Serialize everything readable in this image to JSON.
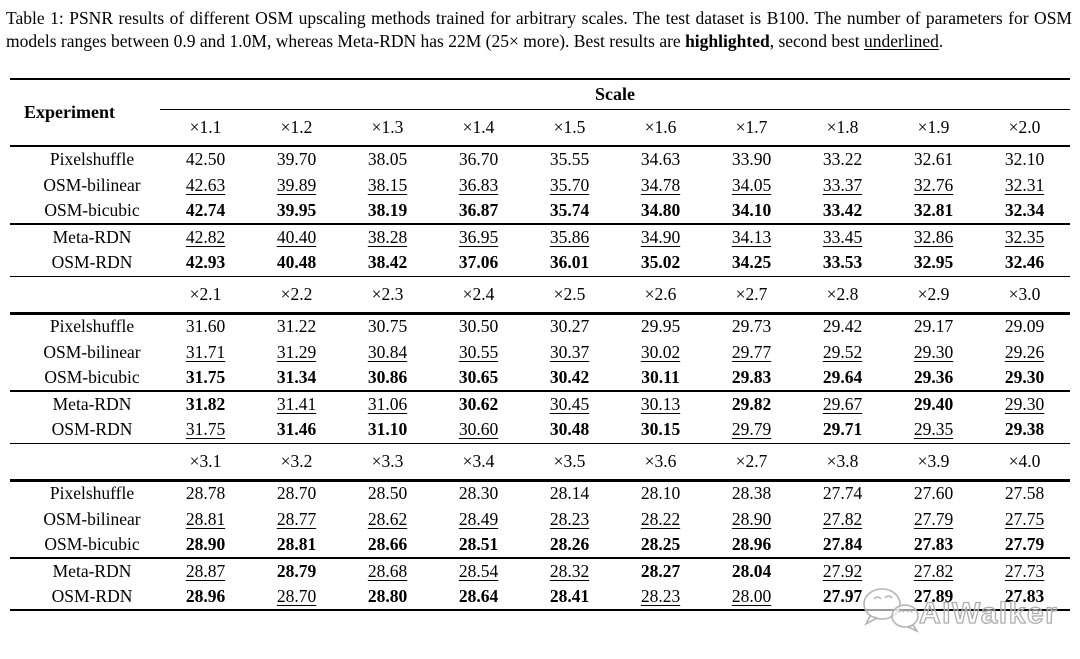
{
  "colors": {
    "background": "#ffffff",
    "text": "#000000",
    "rule": "#000000",
    "watermark_gray": "#b4b4b4"
  },
  "caption": {
    "parts": [
      {
        "text": "Table 1: PSNR results of different OSM upscaling methods trained for arbitrary scales. The test dataset is B100. The number of parameters for OSM models ranges between 0.9 and 1.0M, whereas Meta-RDN has 22M (25× more). Best results are ",
        "style": "normal"
      },
      {
        "text": "highlighted",
        "style": "bold"
      },
      {
        "text": ", second best ",
        "style": "normal"
      },
      {
        "text": "underlined",
        "style": "underline"
      },
      {
        "text": ".",
        "style": "normal"
      }
    ]
  },
  "table": {
    "experiment_header": "Experiment",
    "scale_header": "Scale",
    "blocks": [
      {
        "scales": [
          "×1.1",
          "×1.2",
          "×1.3",
          "×1.4",
          "×1.5",
          "×1.6",
          "×1.7",
          "×1.8",
          "×1.9",
          "×2.0"
        ],
        "groups": [
          {
            "rows": [
              {
                "label": "Pixelshuffle",
                "cells": [
                  {
                    "v": "42.50",
                    "s": "n"
                  },
                  {
                    "v": "39.70",
                    "s": "n"
                  },
                  {
                    "v": "38.05",
                    "s": "n"
                  },
                  {
                    "v": "36.70",
                    "s": "n"
                  },
                  {
                    "v": "35.55",
                    "s": "n"
                  },
                  {
                    "v": "34.63",
                    "s": "n"
                  },
                  {
                    "v": "33.90",
                    "s": "n"
                  },
                  {
                    "v": "33.22",
                    "s": "n"
                  },
                  {
                    "v": "32.61",
                    "s": "n"
                  },
                  {
                    "v": "32.10",
                    "s": "n"
                  }
                ]
              },
              {
                "label": "OSM-bilinear",
                "cells": [
                  {
                    "v": "42.63",
                    "s": "u"
                  },
                  {
                    "v": "39.89",
                    "s": "u"
                  },
                  {
                    "v": "38.15",
                    "s": "u"
                  },
                  {
                    "v": "36.83",
                    "s": "u"
                  },
                  {
                    "v": "35.70",
                    "s": "u"
                  },
                  {
                    "v": "34.78",
                    "s": "u"
                  },
                  {
                    "v": "34.05",
                    "s": "u"
                  },
                  {
                    "v": "33.37",
                    "s": "u"
                  },
                  {
                    "v": "32.76",
                    "s": "u"
                  },
                  {
                    "v": "32.31",
                    "s": "u"
                  }
                ]
              },
              {
                "label": "OSM-bicubic",
                "cells": [
                  {
                    "v": "42.74",
                    "s": "b"
                  },
                  {
                    "v": "39.95",
                    "s": "b"
                  },
                  {
                    "v": "38.19",
                    "s": "b"
                  },
                  {
                    "v": "36.87",
                    "s": "b"
                  },
                  {
                    "v": "35.74",
                    "s": "b"
                  },
                  {
                    "v": "34.80",
                    "s": "b"
                  },
                  {
                    "v": "34.10",
                    "s": "b"
                  },
                  {
                    "v": "33.42",
                    "s": "b"
                  },
                  {
                    "v": "32.81",
                    "s": "b"
                  },
                  {
                    "v": "32.34",
                    "s": "b"
                  }
                ]
              }
            ]
          },
          {
            "rows": [
              {
                "label": "Meta-RDN",
                "cells": [
                  {
                    "v": "42.82",
                    "s": "u"
                  },
                  {
                    "v": "40.40",
                    "s": "u"
                  },
                  {
                    "v": "38.28",
                    "s": "u"
                  },
                  {
                    "v": "36.95",
                    "s": "u"
                  },
                  {
                    "v": "35.86",
                    "s": "u"
                  },
                  {
                    "v": "34.90",
                    "s": "u"
                  },
                  {
                    "v": "34.13",
                    "s": "u"
                  },
                  {
                    "v": "33.45",
                    "s": "u"
                  },
                  {
                    "v": "32.86",
                    "s": "u"
                  },
                  {
                    "v": "32.35",
                    "s": "u"
                  }
                ]
              },
              {
                "label": "OSM-RDN",
                "cells": [
                  {
                    "v": "42.93",
                    "s": "b"
                  },
                  {
                    "v": "40.48",
                    "s": "b"
                  },
                  {
                    "v": "38.42",
                    "s": "b"
                  },
                  {
                    "v": "37.06",
                    "s": "b"
                  },
                  {
                    "v": "36.01",
                    "s": "b"
                  },
                  {
                    "v": "35.02",
                    "s": "b"
                  },
                  {
                    "v": "34.25",
                    "s": "b"
                  },
                  {
                    "v": "33.53",
                    "s": "b"
                  },
                  {
                    "v": "32.95",
                    "s": "b"
                  },
                  {
                    "v": "32.46",
                    "s": "b"
                  }
                ]
              }
            ]
          }
        ]
      },
      {
        "scales": [
          "×2.1",
          "×2.2",
          "×2.3",
          "×2.4",
          "×2.5",
          "×2.6",
          "×2.7",
          "×2.8",
          "×2.9",
          "×3.0"
        ],
        "groups": [
          {
            "rows": [
              {
                "label": "Pixelshuffle",
                "cells": [
                  {
                    "v": "31.60",
                    "s": "n"
                  },
                  {
                    "v": "31.22",
                    "s": "n"
                  },
                  {
                    "v": "30.75",
                    "s": "n"
                  },
                  {
                    "v": "30.50",
                    "s": "n"
                  },
                  {
                    "v": "30.27",
                    "s": "n"
                  },
                  {
                    "v": "29.95",
                    "s": "n"
                  },
                  {
                    "v": "29.73",
                    "s": "n"
                  },
                  {
                    "v": "29.42",
                    "s": "n"
                  },
                  {
                    "v": "29.17",
                    "s": "n"
                  },
                  {
                    "v": "29.09",
                    "s": "n"
                  }
                ]
              },
              {
                "label": "OSM-bilinear",
                "cells": [
                  {
                    "v": "31.71",
                    "s": "u"
                  },
                  {
                    "v": "31.29",
                    "s": "u"
                  },
                  {
                    "v": "30.84",
                    "s": "u"
                  },
                  {
                    "v": "30.55",
                    "s": "u"
                  },
                  {
                    "v": "30.37",
                    "s": "u"
                  },
                  {
                    "v": "30.02",
                    "s": "u"
                  },
                  {
                    "v": "29.77",
                    "s": "u"
                  },
                  {
                    "v": "29.52",
                    "s": "u"
                  },
                  {
                    "v": "29.30",
                    "s": "u"
                  },
                  {
                    "v": "29.26",
                    "s": "u"
                  }
                ]
              },
              {
                "label": "OSM-bicubic",
                "cells": [
                  {
                    "v": "31.75",
                    "s": "b"
                  },
                  {
                    "v": "31.34",
                    "s": "b"
                  },
                  {
                    "v": "30.86",
                    "s": "b"
                  },
                  {
                    "v": "30.65",
                    "s": "b"
                  },
                  {
                    "v": "30.42",
                    "s": "b"
                  },
                  {
                    "v": "30.11",
                    "s": "b"
                  },
                  {
                    "v": "29.83",
                    "s": "b"
                  },
                  {
                    "v": "29.64",
                    "s": "b"
                  },
                  {
                    "v": "29.36",
                    "s": "b"
                  },
                  {
                    "v": "29.30",
                    "s": "b"
                  }
                ]
              }
            ]
          },
          {
            "rows": [
              {
                "label": "Meta-RDN",
                "cells": [
                  {
                    "v": "31.82",
                    "s": "b"
                  },
                  {
                    "v": "31.41",
                    "s": "u"
                  },
                  {
                    "v": "31.06",
                    "s": "u"
                  },
                  {
                    "v": "30.62",
                    "s": "b"
                  },
                  {
                    "v": "30.45",
                    "s": "u"
                  },
                  {
                    "v": "30.13",
                    "s": "u"
                  },
                  {
                    "v": "29.82",
                    "s": "b"
                  },
                  {
                    "v": "29.67",
                    "s": "u"
                  },
                  {
                    "v": "29.40",
                    "s": "b"
                  },
                  {
                    "v": "29.30",
                    "s": "u"
                  }
                ]
              },
              {
                "label": "OSM-RDN",
                "cells": [
                  {
                    "v": "31.75",
                    "s": "u"
                  },
                  {
                    "v": "31.46",
                    "s": "b"
                  },
                  {
                    "v": "31.10",
                    "s": "b"
                  },
                  {
                    "v": "30.60",
                    "s": "u"
                  },
                  {
                    "v": "30.48",
                    "s": "b"
                  },
                  {
                    "v": "30.15",
                    "s": "b"
                  },
                  {
                    "v": "29.79",
                    "s": "u"
                  },
                  {
                    "v": "29.71",
                    "s": "b"
                  },
                  {
                    "v": "29.35",
                    "s": "u"
                  },
                  {
                    "v": "29.38",
                    "s": "b"
                  }
                ]
              }
            ]
          }
        ]
      },
      {
        "scales": [
          "×3.1",
          "×3.2",
          "×3.3",
          "×3.4",
          "×3.5",
          "×3.6",
          "×2.7",
          "×3.8",
          "×3.9",
          "×4.0"
        ],
        "groups": [
          {
            "rows": [
              {
                "label": "Pixelshuffle",
                "cells": [
                  {
                    "v": "28.78",
                    "s": "n"
                  },
                  {
                    "v": "28.70",
                    "s": "n"
                  },
                  {
                    "v": "28.50",
                    "s": "n"
                  },
                  {
                    "v": "28.30",
                    "s": "n"
                  },
                  {
                    "v": "28.14",
                    "s": "n"
                  },
                  {
                    "v": "28.10",
                    "s": "n"
                  },
                  {
                    "v": "28.38",
                    "s": "n"
                  },
                  {
                    "v": "27.74",
                    "s": "n"
                  },
                  {
                    "v": "27.60",
                    "s": "n"
                  },
                  {
                    "v": "27.58",
                    "s": "n"
                  }
                ]
              },
              {
                "label": "OSM-bilinear",
                "cells": [
                  {
                    "v": "28.81",
                    "s": "u"
                  },
                  {
                    "v": "28.77",
                    "s": "u"
                  },
                  {
                    "v": "28.62",
                    "s": "u"
                  },
                  {
                    "v": "28.49",
                    "s": "u"
                  },
                  {
                    "v": "28.23",
                    "s": "u"
                  },
                  {
                    "v": "28.22",
                    "s": "u"
                  },
                  {
                    "v": "28.90",
                    "s": "u"
                  },
                  {
                    "v": "27.82",
                    "s": "u"
                  },
                  {
                    "v": "27.79",
                    "s": "u"
                  },
                  {
                    "v": "27.75",
                    "s": "u"
                  }
                ]
              },
              {
                "label": "OSM-bicubic",
                "cells": [
                  {
                    "v": "28.90",
                    "s": "b"
                  },
                  {
                    "v": "28.81",
                    "s": "b"
                  },
                  {
                    "v": "28.66",
                    "s": "b"
                  },
                  {
                    "v": "28.51",
                    "s": "b"
                  },
                  {
                    "v": "28.26",
                    "s": "b"
                  },
                  {
                    "v": "28.25",
                    "s": "b"
                  },
                  {
                    "v": "28.96",
                    "s": "b"
                  },
                  {
                    "v": "27.84",
                    "s": "b"
                  },
                  {
                    "v": "27.83",
                    "s": "b"
                  },
                  {
                    "v": "27.79",
                    "s": "b"
                  }
                ]
              }
            ]
          },
          {
            "rows": [
              {
                "label": "Meta-RDN",
                "cells": [
                  {
                    "v": "28.87",
                    "s": "u"
                  },
                  {
                    "v": "28.79",
                    "s": "b"
                  },
                  {
                    "v": "28.68",
                    "s": "u"
                  },
                  {
                    "v": "28.54",
                    "s": "u"
                  },
                  {
                    "v": "28.32",
                    "s": "u"
                  },
                  {
                    "v": "28.27",
                    "s": "b"
                  },
                  {
                    "v": "28.04",
                    "s": "b"
                  },
                  {
                    "v": "27.92",
                    "s": "u"
                  },
                  {
                    "v": "27.82",
                    "s": "u"
                  },
                  {
                    "v": "27.73",
                    "s": "u"
                  }
                ]
              },
              {
                "label": "OSM-RDN",
                "cells": [
                  {
                    "v": "28.96",
                    "s": "b"
                  },
                  {
                    "v": "28.70",
                    "s": "u"
                  },
                  {
                    "v": "28.80",
                    "s": "b"
                  },
                  {
                    "v": "28.64",
                    "s": "b"
                  },
                  {
                    "v": "28.41",
                    "s": "b"
                  },
                  {
                    "v": "28.23",
                    "s": "u"
                  },
                  {
                    "v": "28.00",
                    "s": "u"
                  },
                  {
                    "v": "27.97",
                    "s": "b"
                  },
                  {
                    "v": "27.89",
                    "s": "b"
                  },
                  {
                    "v": "27.83",
                    "s": "b"
                  }
                ]
              }
            ]
          }
        ]
      }
    ]
  },
  "watermark": {
    "text": "AIWalker"
  }
}
